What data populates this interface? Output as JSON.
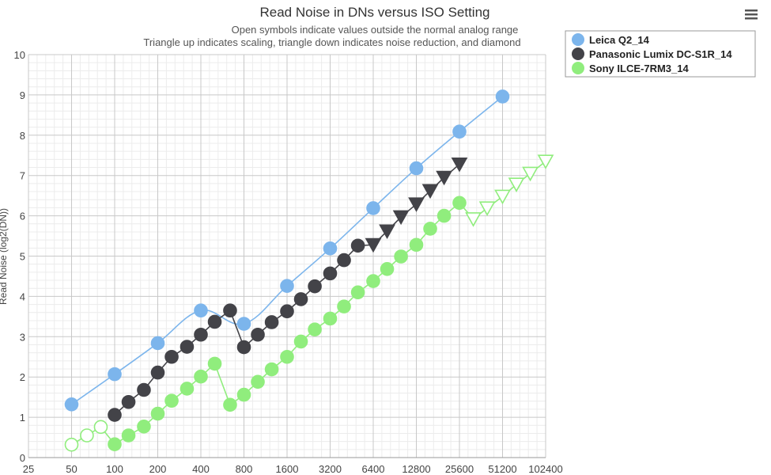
{
  "chart_data": {
    "type": "line",
    "title": "Read Noise in DNs versus ISO Setting",
    "subtitle_lines": [
      "Open symbols indicate values outside the normal analog range",
      "Triangle up indicates scaling, triangle down indicates noise reduction, and diamond"
    ],
    "ylabel": "Read Noise (log2(DN))",
    "xlabel": "",
    "x_scale": "log2",
    "x_ticks": [
      25,
      50,
      100,
      200,
      400,
      800,
      1600,
      3200,
      6400,
      12800,
      25600,
      51200,
      102400
    ],
    "x_tick_labels": [
      "25",
      "50",
      "100",
      "200",
      "400",
      "800",
      "1600",
      "3200",
      "6400",
      "12800",
      "25600",
      "51200",
      "102400"
    ],
    "ylim": [
      0,
      10
    ],
    "y_ticks": [
      0,
      1,
      2,
      3,
      4,
      5,
      6,
      7,
      8,
      9,
      10
    ],
    "grid": true,
    "legend_position": "top-right",
    "series": [
      {
        "name": "Leica Q2_14",
        "color": "#7cb5ec",
        "line_style": "smooth",
        "points": [
          {
            "x": 50,
            "y": 1.32,
            "marker": "circle",
            "filled": true
          },
          {
            "x": 100,
            "y": 2.07,
            "marker": "circle",
            "filled": true
          },
          {
            "x": 200,
            "y": 2.84,
            "marker": "circle",
            "filled": true
          },
          {
            "x": 400,
            "y": 3.65,
            "marker": "circle",
            "filled": true
          },
          {
            "x": 800,
            "y": 3.32,
            "marker": "circle",
            "filled": true
          },
          {
            "x": 1600,
            "y": 4.26,
            "marker": "circle",
            "filled": true
          },
          {
            "x": 3200,
            "y": 5.19,
            "marker": "circle",
            "filled": true
          },
          {
            "x": 6400,
            "y": 6.19,
            "marker": "circle",
            "filled": true
          },
          {
            "x": 12800,
            "y": 7.18,
            "marker": "circle",
            "filled": true
          },
          {
            "x": 25600,
            "y": 8.09,
            "marker": "circle",
            "filled": true
          },
          {
            "x": 51200,
            "y": 8.96,
            "marker": "circle",
            "filled": true
          }
        ]
      },
      {
        "name": "Panasonic Lumix DC-S1R_14",
        "color": "#434348",
        "line_style": "straight",
        "points": [
          {
            "x": 100,
            "y": 1.06,
            "marker": "circle",
            "filled": true
          },
          {
            "x": 125,
            "y": 1.38,
            "marker": "circle",
            "filled": true
          },
          {
            "x": 160,
            "y": 1.68,
            "marker": "circle",
            "filled": true
          },
          {
            "x": 200,
            "y": 2.11,
            "marker": "circle",
            "filled": true
          },
          {
            "x": 250,
            "y": 2.5,
            "marker": "circle",
            "filled": true
          },
          {
            "x": 320,
            "y": 2.75,
            "marker": "circle",
            "filled": true
          },
          {
            "x": 400,
            "y": 3.05,
            "marker": "circle",
            "filled": true
          },
          {
            "x": 500,
            "y": 3.37,
            "marker": "circle",
            "filled": true
          },
          {
            "x": 640,
            "y": 3.65,
            "marker": "circle",
            "filled": true
          },
          {
            "x": 800,
            "y": 2.74,
            "marker": "circle",
            "filled": true
          },
          {
            "x": 1000,
            "y": 3.05,
            "marker": "circle",
            "filled": true
          },
          {
            "x": 1250,
            "y": 3.36,
            "marker": "circle",
            "filled": true
          },
          {
            "x": 1600,
            "y": 3.63,
            "marker": "circle",
            "filled": true
          },
          {
            "x": 2000,
            "y": 3.93,
            "marker": "circle",
            "filled": true
          },
          {
            "x": 2500,
            "y": 4.25,
            "marker": "circle",
            "filled": true
          },
          {
            "x": 3200,
            "y": 4.57,
            "marker": "circle",
            "filled": true
          },
          {
            "x": 4000,
            "y": 4.9,
            "marker": "circle",
            "filled": true
          },
          {
            "x": 5000,
            "y": 5.26,
            "marker": "circle",
            "filled": true
          },
          {
            "x": 6400,
            "y": 5.28,
            "marker": "triangle-down",
            "filled": true
          },
          {
            "x": 8000,
            "y": 5.62,
            "marker": "triangle-down",
            "filled": true
          },
          {
            "x": 10000,
            "y": 5.97,
            "marker": "triangle-down",
            "filled": true
          },
          {
            "x": 12800,
            "y": 6.29,
            "marker": "triangle-down",
            "filled": true
          },
          {
            "x": 16000,
            "y": 6.62,
            "marker": "triangle-down",
            "filled": true
          },
          {
            "x": 20000,
            "y": 6.95,
            "marker": "triangle-down",
            "filled": true
          },
          {
            "x": 25600,
            "y": 7.28,
            "marker": "triangle-down",
            "filled": true
          }
        ]
      },
      {
        "name": "Sony ILCE-7RM3_14",
        "color": "#90ed7d",
        "line_style": "straight",
        "points": [
          {
            "x": 50,
            "y": 0.32,
            "marker": "circle",
            "filled": false
          },
          {
            "x": 64,
            "y": 0.55,
            "marker": "circle",
            "filled": false
          },
          {
            "x": 80,
            "y": 0.76,
            "marker": "circle",
            "filled": false
          },
          {
            "x": 100,
            "y": 0.33,
            "marker": "circle",
            "filled": true
          },
          {
            "x": 125,
            "y": 0.55,
            "marker": "circle",
            "filled": true
          },
          {
            "x": 160,
            "y": 0.77,
            "marker": "circle",
            "filled": true
          },
          {
            "x": 200,
            "y": 1.09,
            "marker": "circle",
            "filled": true
          },
          {
            "x": 250,
            "y": 1.41,
            "marker": "circle",
            "filled": true
          },
          {
            "x": 320,
            "y": 1.71,
            "marker": "circle",
            "filled": true
          },
          {
            "x": 400,
            "y": 2.01,
            "marker": "circle",
            "filled": true
          },
          {
            "x": 500,
            "y": 2.33,
            "marker": "circle",
            "filled": true
          },
          {
            "x": 640,
            "y": 1.31,
            "marker": "circle",
            "filled": true
          },
          {
            "x": 800,
            "y": 1.56,
            "marker": "circle",
            "filled": true
          },
          {
            "x": 1000,
            "y": 1.88,
            "marker": "circle",
            "filled": true
          },
          {
            "x": 1250,
            "y": 2.19,
            "marker": "circle",
            "filled": true
          },
          {
            "x": 1600,
            "y": 2.5,
            "marker": "circle",
            "filled": true
          },
          {
            "x": 2000,
            "y": 2.88,
            "marker": "circle",
            "filled": true
          },
          {
            "x": 2500,
            "y": 3.18,
            "marker": "circle",
            "filled": true
          },
          {
            "x": 3200,
            "y": 3.45,
            "marker": "circle",
            "filled": true
          },
          {
            "x": 4000,
            "y": 3.75,
            "marker": "circle",
            "filled": true
          },
          {
            "x": 5000,
            "y": 4.1,
            "marker": "circle",
            "filled": true
          },
          {
            "x": 6400,
            "y": 4.38,
            "marker": "circle",
            "filled": true
          },
          {
            "x": 8000,
            "y": 4.68,
            "marker": "circle",
            "filled": true
          },
          {
            "x": 10000,
            "y": 4.99,
            "marker": "circle",
            "filled": true
          },
          {
            "x": 12800,
            "y": 5.28,
            "marker": "circle",
            "filled": true
          },
          {
            "x": 16000,
            "y": 5.68,
            "marker": "circle",
            "filled": true
          },
          {
            "x": 20000,
            "y": 6.0,
            "marker": "circle",
            "filled": true
          },
          {
            "x": 25600,
            "y": 6.32,
            "marker": "circle",
            "filled": true
          },
          {
            "x": 32000,
            "y": 5.92,
            "marker": "triangle-down",
            "filled": false
          },
          {
            "x": 40000,
            "y": 6.19,
            "marker": "triangle-down",
            "filled": false
          },
          {
            "x": 51200,
            "y": 6.48,
            "marker": "triangle-down",
            "filled": false
          },
          {
            "x": 64000,
            "y": 6.78,
            "marker": "triangle-down",
            "filled": false
          },
          {
            "x": 80000,
            "y": 7.05,
            "marker": "triangle-down",
            "filled": false
          },
          {
            "x": 102400,
            "y": 7.35,
            "marker": "triangle-down",
            "filled": false
          }
        ]
      }
    ]
  },
  "menu": {
    "icon": "hamburger-menu-icon"
  }
}
